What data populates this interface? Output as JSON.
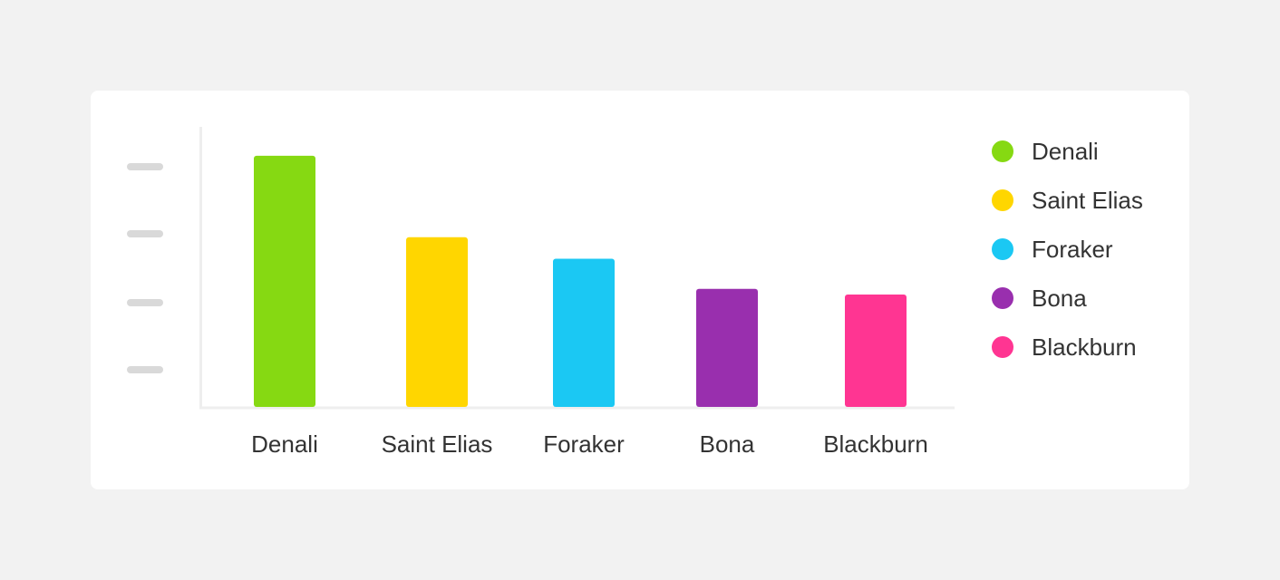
{
  "chart_data": {
    "type": "bar",
    "categories": [
      "Denali",
      "Saint Elias",
      "Foraker",
      "Bona",
      "Blackburn"
    ],
    "values": [
      20310,
      18008,
      17400,
      16550,
      16390
    ],
    "colors": [
      "#86d912",
      "#ffd600",
      "#1bc8f3",
      "#992fae",
      "#ff3592"
    ],
    "legend": {
      "position": "right",
      "entries": [
        "Denali",
        "Saint Elias",
        "Foraker",
        "Bona",
        "Blackburn"
      ]
    },
    "yaxis": {
      "tick_labels": "placeholder-bars",
      "tick_count": 4
    },
    "grid": false
  }
}
